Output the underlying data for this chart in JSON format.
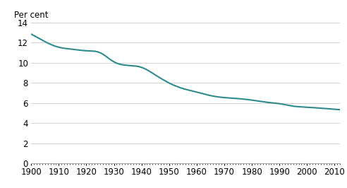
{
  "years": [
    1900,
    1905,
    1910,
    1915,
    1920,
    1925,
    1930,
    1935,
    1940,
    1945,
    1950,
    1955,
    1960,
    1965,
    1970,
    1975,
    1980,
    1985,
    1990,
    1995,
    2000,
    2005,
    2010,
    2012
  ],
  "values": [
    12.85,
    12.1,
    11.55,
    11.35,
    11.2,
    11.0,
    10.1,
    9.75,
    9.55,
    8.8,
    8.0,
    7.45,
    7.1,
    6.75,
    6.55,
    6.45,
    6.3,
    6.1,
    5.95,
    5.7,
    5.6,
    5.5,
    5.4,
    5.35
  ],
  "line_color": "#2e8b8b",
  "line_width": 1.5,
  "ylabel": "Per cent",
  "ylim": [
    0,
    14
  ],
  "xlim": [
    1900,
    2012
  ],
  "yticks": [
    0,
    2,
    4,
    6,
    8,
    10,
    12,
    14
  ],
  "xticks": [
    1900,
    1910,
    1920,
    1930,
    1940,
    1950,
    1960,
    1970,
    1980,
    1990,
    2000,
    2010
  ],
  "grid_color": "#cccccc",
  "background_color": "#ffffff",
  "tick_label_fontsize": 8.5
}
